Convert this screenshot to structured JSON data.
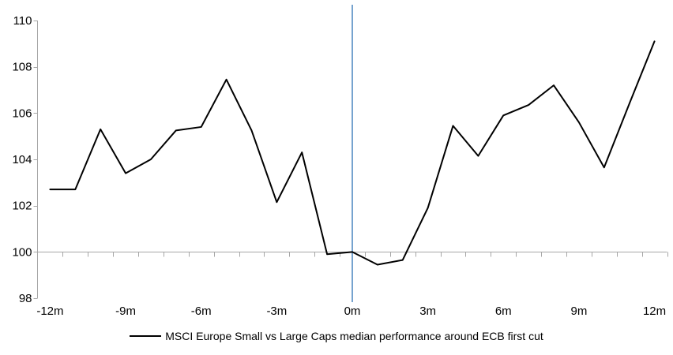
{
  "chart_data": {
    "type": "line",
    "title": "",
    "xlabel": "",
    "ylabel": "",
    "legend": "MSCI Europe Small vs Large Caps median performance around ECB first cut",
    "legend_position": "bottom-center",
    "grid": "off",
    "categories": [
      -12,
      -11,
      -10,
      -9,
      -8,
      -7,
      -6,
      -5,
      -4,
      -3,
      -2,
      -1,
      0,
      1,
      2,
      3,
      4,
      5,
      6,
      7,
      8,
      9,
      10,
      11,
      12
    ],
    "series": [
      {
        "name": "MSCI Europe Small vs Large Caps median performance around ECB first cut",
        "color": "#000000",
        "values": [
          102.7,
          102.7,
          105.3,
          103.4,
          104.0,
          105.25,
          105.4,
          107.45,
          105.25,
          102.15,
          104.3,
          99.9,
          100.0,
          99.45,
          99.65,
          101.9,
          105.45,
          104.15,
          105.9,
          106.35,
          107.2,
          105.6,
          103.65,
          106.4,
          109.1
        ]
      }
    ],
    "x_tick_positions": [
      -12,
      -9,
      -6,
      -3,
      0,
      3,
      6,
      9,
      12
    ],
    "x_tick_labels": [
      "-12m",
      "-9m",
      "-6m",
      "-3m",
      "0m",
      "3m",
      "6m",
      "9m",
      "12m"
    ],
    "y_ticks": [
      98,
      100,
      102,
      104,
      106,
      108,
      110
    ],
    "y_tick_labels": [
      "98",
      "100",
      "102",
      "104",
      "106",
      "108",
      "110"
    ],
    "ylim": [
      98,
      110
    ],
    "xlim": [
      -12.5,
      12.5
    ],
    "x_axis_position_value": 100,
    "event_line": {
      "x": 0,
      "color": "#76A3CF"
    },
    "colors": {
      "axis": "#A6A6A6",
      "series": "#000000",
      "background": "#FFFFFF",
      "text": "#000000"
    }
  }
}
